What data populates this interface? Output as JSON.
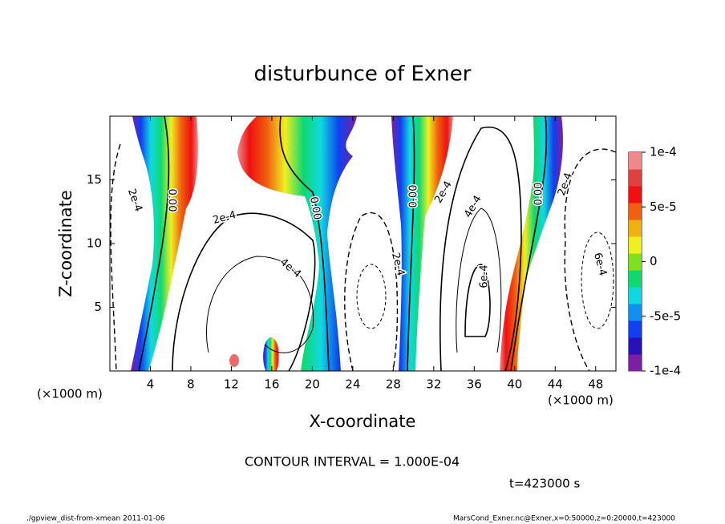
{
  "chart_data": {
    "type": "contour",
    "title": "disturbunce of Exner",
    "x_label": "X-coordinate",
    "y_label": "Z-coordinate",
    "x_unit_label": "(×1000 m)",
    "xlim": [
      0,
      50
    ],
    "xticks": [
      4,
      8,
      12,
      16,
      20,
      24,
      28,
      32,
      36,
      40,
      44,
      48
    ],
    "ylim": [
      0,
      20
    ],
    "yticks": [
      5,
      10,
      15
    ],
    "colorbar_lim": [
      -0.0001,
      0.0001
    ],
    "colorbar_ticks": [
      {
        "value": 0.0001,
        "label": "1e-4"
      },
      {
        "value": 5e-05,
        "label": "5e-5"
      },
      0,
      {
        "value": -5e-05,
        "label": "-5e-5"
      },
      {
        "value": -0.0001,
        "label": "-1e-4"
      }
    ],
    "colorbar_colors": [
      "#7d1fa0",
      "#2a10b8",
      "#1040f0",
      "#1090f0",
      "#10d8e0",
      "#10d870",
      "#80e020",
      "#f0f020",
      "#f0b010",
      "#f06010",
      "#f01010",
      "#e04040",
      "#f08a8a"
    ],
    "contour_labels": [
      "2e-4",
      "0.00",
      "2e-4",
      "0.00",
      "4e-4",
      "2e-4",
      "0.00",
      "2e-4",
      "4e-4",
      "6e-4",
      "0.00",
      "2e-4",
      "6e-4"
    ],
    "annotations": [
      "CONTOUR INTERVAL = 1.000E-04",
      "t=423000 s"
    ],
    "footer_left": "./gpview_dist-from-xmean  2011-01-06",
    "footer_right": "MarsCond_Exner.nc@Exner,x=0:50000,z=0:20000,t=423000"
  }
}
